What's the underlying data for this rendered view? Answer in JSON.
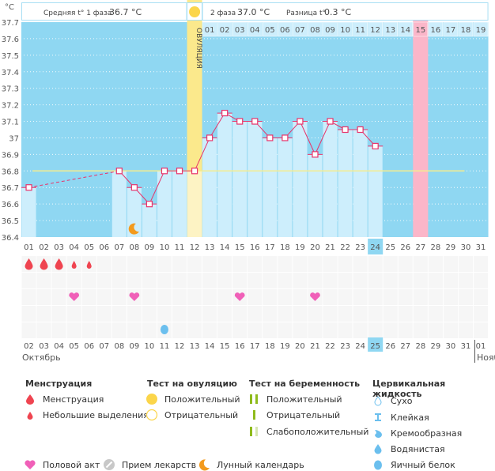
{
  "header": {
    "phase1_label": "Средняя t° 1 фаза",
    "phase1_value": "36.7 °C",
    "phase2_label": "2 фаза",
    "phase2_value": "37.0 °C",
    "diff_label": "Разница t°",
    "diff_value": "0.3 °C",
    "ovulation_label": "ОВУЛЯЦИЯ",
    "unit": "°C"
  },
  "colors": {
    "plot_bg": "#8fd7f2",
    "bar_fill": "#cdeefc",
    "line": "#e8336a",
    "coverline": "#f5ec8f",
    "ovulation": "#fbe98c",
    "expected_period": "#fbb6c9",
    "weekend": "#e8336a",
    "today": "#8fd7f2"
  },
  "chart_data": {
    "type": "line",
    "title": "",
    "ylabel": "°C",
    "xlabel": "",
    "ylim": [
      36.4,
      37.7
    ],
    "yticks": [
      "37.7",
      "37.6",
      "37.5",
      "37.4",
      "37.3",
      "37.2",
      "37.1",
      "37",
      "36.9",
      "36.8",
      "36.7",
      "36.6",
      "36.5",
      "36.4"
    ],
    "cycle_days": [
      "01",
      "02",
      "03",
      "04",
      "05",
      "06",
      "07",
      "08",
      "09",
      "10",
      "11",
      "12",
      "13",
      "14",
      "15",
      "16",
      "17",
      "18",
      "19",
      "20",
      "21",
      "22",
      "23",
      "24",
      "25",
      "26",
      "27",
      "28",
      "29",
      "30",
      "31"
    ],
    "temperatures": [
      36.7,
      null,
      null,
      null,
      null,
      null,
      36.8,
      36.7,
      36.6,
      36.8,
      36.8,
      36.8,
      37.0,
      37.15,
      37.1,
      37.1,
      37.0,
      37.0,
      37.1,
      36.9,
      37.1,
      37.05,
      37.05,
      36.95,
      null,
      null,
      null,
      null,
      null,
      null,
      null
    ],
    "coverline": 36.8,
    "ovulation_day": 12,
    "expected_period_day": 27,
    "today_cycle_day": 24,
    "phase2_day_labels": [
      "01",
      "02",
      "03",
      "04",
      "05",
      "06",
      "07",
      "08",
      "09",
      "10",
      "11",
      "12",
      "13",
      "14",
      "15",
      "16",
      "17",
      "18",
      "19"
    ],
    "phase2_highlight": "15",
    "calendar_dates": [
      "02",
      "03",
      "04",
      "05",
      "06",
      "07",
      "08",
      "09",
      "10",
      "11",
      "12",
      "13",
      "14",
      "15",
      "16",
      "17",
      "18",
      "19",
      "20",
      "21",
      "22",
      "23",
      "24",
      "25",
      "26",
      "27",
      "28",
      "29",
      "30",
      "31",
      "01"
    ],
    "weekend_dates": [
      "07",
      "08",
      "14",
      "15",
      "21",
      "22",
      "28",
      "29"
    ],
    "today_date": "25",
    "months": [
      "Октябрь",
      "Нояб"
    ],
    "menstruation": [
      {
        "day": 1,
        "type": "heavy"
      },
      {
        "day": 2,
        "type": "heavy"
      },
      {
        "day": 3,
        "type": "heavy"
      },
      {
        "day": 4,
        "type": "light"
      },
      {
        "day": 5,
        "type": "light"
      }
    ],
    "intercourse_days": [
      4,
      8,
      15,
      20
    ],
    "cervical_fluid": [
      {
        "day": 10,
        "type": "egg-white"
      }
    ],
    "lunar_days": [
      8
    ]
  },
  "legend": {
    "menstruation": {
      "title": "Менструация",
      "items": [
        "Менструация",
        "Небольшие выделения"
      ]
    },
    "ovulation_test": {
      "title": "Тест на овуляцию",
      "items": [
        "Положительный",
        "Отрицательный"
      ]
    },
    "pregnancy_test": {
      "title": "Тест на беременность",
      "items": [
        "Положительный",
        "Отрицательный",
        "Слабоположительный"
      ]
    },
    "cervical": {
      "title": "Цервикальная жидкость",
      "items": [
        "Сухо",
        "Клейкая",
        "Кремообразная",
        "Водянистая",
        "Яичный белок"
      ]
    },
    "other": [
      "Половой акт",
      "Прием лекарств",
      "Лунный календарь"
    ]
  }
}
